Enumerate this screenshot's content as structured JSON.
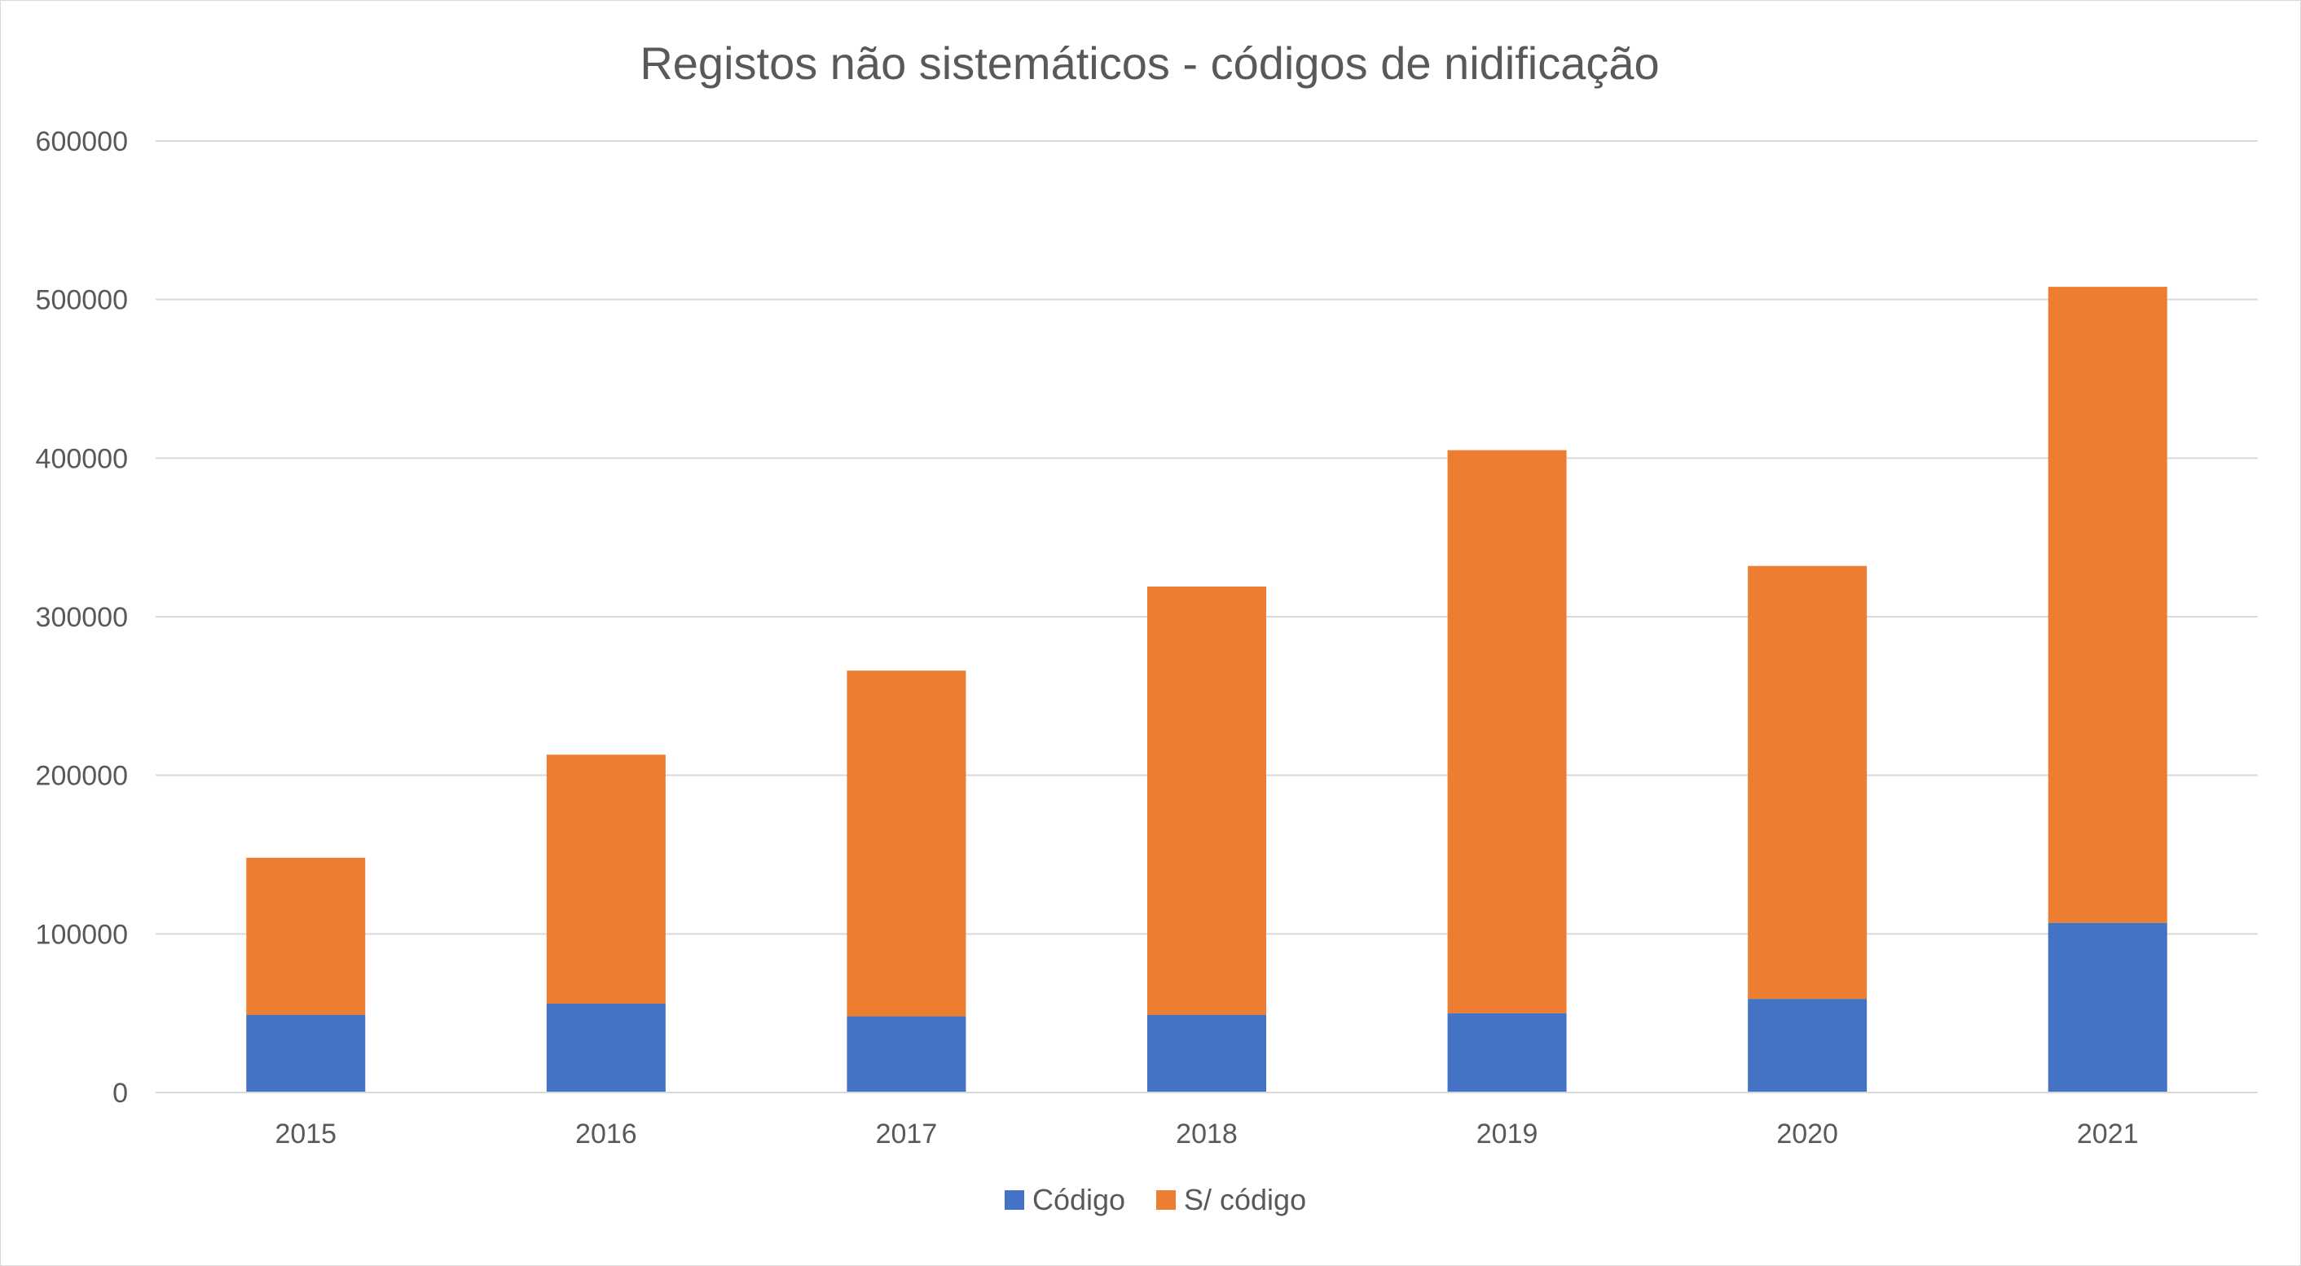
{
  "chart_data": {
    "type": "bar",
    "stacked": true,
    "title": "Registos não sistemáticos - códigos de nidificação",
    "xlabel": "",
    "ylabel": "",
    "categories": [
      "2015",
      "2016",
      "2017",
      "2018",
      "2019",
      "2020",
      "2021"
    ],
    "series": [
      {
        "name": "Código",
        "color": "#4472C4",
        "values": [
          49000,
          56000,
          48000,
          49000,
          50000,
          59000,
          107000
        ]
      },
      {
        "name": "S/ código",
        "color": "#ED7D31",
        "values": [
          99000,
          157000,
          218000,
          270000,
          355000,
          273000,
          401000
        ]
      }
    ],
    "ylim": [
      0,
      600000
    ],
    "yticks": [
      "0",
      "100000",
      "200000",
      "300000",
      "400000",
      "500000",
      "600000"
    ],
    "ytick_values": [
      0,
      100000,
      200000,
      300000,
      400000,
      500000,
      600000
    ],
    "grid": true,
    "legend_position": "bottom"
  }
}
